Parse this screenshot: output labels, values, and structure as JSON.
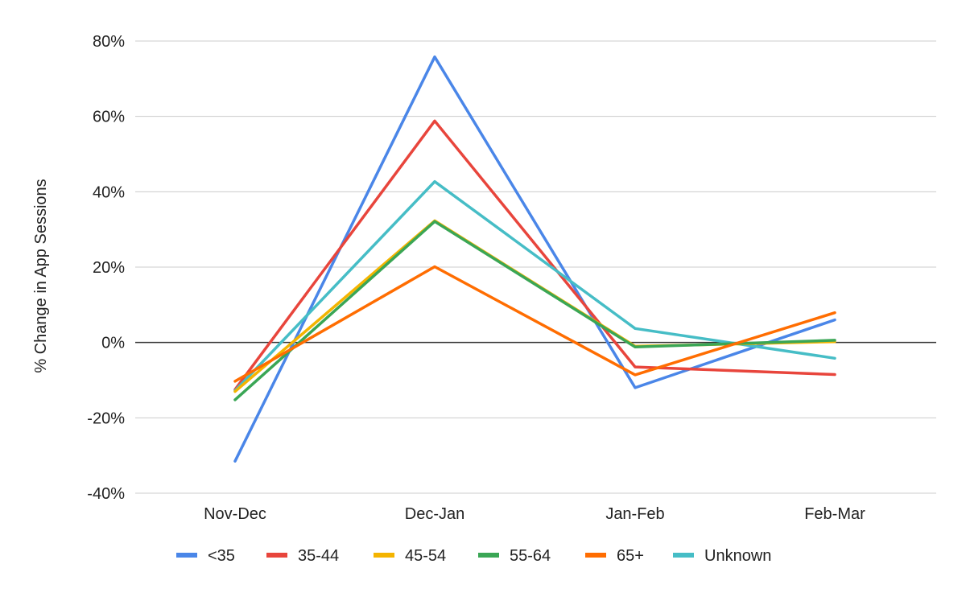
{
  "chart_data": {
    "type": "line",
    "title": "",
    "xlabel": "",
    "ylabel": "% Change in App Sessions",
    "categories": [
      "Nov-Dec",
      "Dec-Jan",
      "Jan-Feb",
      "Feb-Mar"
    ],
    "ylim": [
      -40,
      80
    ],
    "yticks": [
      80,
      60,
      40,
      20,
      0,
      -20,
      -40
    ],
    "ytick_labels": [
      "80%",
      "60%",
      "40%",
      "20%",
      "0%",
      "-20%",
      "-40%"
    ],
    "grid": true,
    "legend_position": "bottom",
    "series": [
      {
        "name": "<35",
        "color": "#4a86e8",
        "values": [
          -31.5,
          75.8,
          -12.0,
          6.0
        ]
      },
      {
        "name": "35-44",
        "color": "#e8453c",
        "values": [
          -12.5,
          58.8,
          -6.5,
          -8.5
        ]
      },
      {
        "name": "45-54",
        "color": "#f4b400",
        "values": [
          -13.0,
          32.3,
          -1.0,
          0.2
        ]
      },
      {
        "name": "55-64",
        "color": "#3aa655",
        "values": [
          -15.2,
          32.1,
          -1.2,
          0.6
        ]
      },
      {
        "name": "65+",
        "color": "#ff6d01",
        "values": [
          -10.3,
          20.1,
          -8.6,
          7.9
        ]
      },
      {
        "name": "Unknown",
        "color": "#46bdc6",
        "values": [
          -12.8,
          42.7,
          3.7,
          -4.2
        ]
      }
    ]
  }
}
